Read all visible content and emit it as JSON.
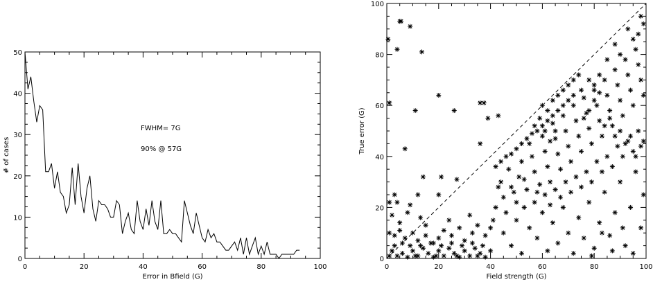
{
  "chart_data": [
    {
      "type": "line",
      "xlabel": "Error in Bfield (G)",
      "ylabel": "# of cases",
      "xlim": [
        0,
        100
      ],
      "ylim": [
        0,
        50
      ],
      "xticks": [
        "0",
        "20",
        "40",
        "60",
        "80",
        "100"
      ],
      "yticks": [
        "0",
        "10",
        "20",
        "30",
        "40",
        "50"
      ],
      "grid": false,
      "annotations": [
        "FWHM= 7G",
        "90% @ 57G"
      ],
      "x": [
        0,
        1,
        2,
        3,
        4,
        5,
        6,
        7,
        8,
        9,
        10,
        11,
        12,
        13,
        14,
        15,
        16,
        17,
        18,
        19,
        20,
        21,
        22,
        23,
        24,
        25,
        26,
        27,
        28,
        29,
        30,
        31,
        32,
        33,
        34,
        35,
        36,
        37,
        38,
        39,
        40,
        41,
        42,
        43,
        44,
        45,
        46,
        47,
        48,
        49,
        50,
        51,
        52,
        53,
        54,
        55,
        56,
        57,
        58,
        59,
        60,
        61,
        62,
        63,
        64,
        65,
        66,
        67,
        68,
        69,
        70,
        71,
        72,
        73,
        74,
        75,
        76,
        77,
        78,
        79,
        80,
        81,
        82,
        83,
        84,
        85,
        86,
        87,
        88,
        89,
        90,
        91,
        92,
        93
      ],
      "values": [
        50,
        41,
        44,
        38,
        33,
        37,
        36,
        21,
        21,
        23,
        17,
        21,
        16,
        15,
        11,
        13,
        22,
        13,
        23,
        15,
        11,
        17,
        20,
        12,
        9,
        14,
        13,
        13,
        12,
        10,
        10,
        14,
        13,
        6,
        9,
        11,
        7,
        6,
        14,
        9,
        7,
        12,
        8,
        14,
        9,
        7,
        14,
        6,
        6,
        7,
        6,
        6,
        5,
        4,
        14,
        11,
        8,
        6,
        11,
        8,
        5,
        4,
        7,
        5,
        6,
        4,
        4,
        3,
        2,
        2,
        3,
        4,
        2,
        5,
        1,
        5,
        1,
        3,
        5,
        1,
        3,
        1,
        4,
        1,
        1,
        1,
        0,
        1,
        1,
        1,
        1,
        1,
        2,
        2
      ]
    },
    {
      "type": "scatter",
      "xlabel": "Field strength (G)",
      "ylabel": "True error (G)",
      "xlim": [
        0,
        100
      ],
      "ylim": [
        0,
        100
      ],
      "xticks": [
        "0",
        "20",
        "40",
        "60",
        "80",
        "100"
      ],
      "yticks": [
        "0",
        "20",
        "40",
        "60",
        "80",
        "100"
      ],
      "grid": false,
      "reference_line": "y = x (dashed)",
      "marker": "asterisk",
      "points": [
        [
          0.5,
          86
        ],
        [
          5,
          93
        ],
        [
          5.5,
          93
        ],
        [
          4,
          82
        ],
        [
          9,
          91
        ],
        [
          13.5,
          81
        ],
        [
          1,
          61
        ],
        [
          7,
          43
        ],
        [
          11,
          58
        ],
        [
          20,
          64
        ],
        [
          26,
          58
        ],
        [
          36,
          61
        ],
        [
          37.5,
          61
        ],
        [
          39,
          55
        ],
        [
          43,
          56
        ],
        [
          36,
          45
        ],
        [
          27,
          31
        ],
        [
          21,
          32
        ],
        [
          14,
          32
        ],
        [
          20,
          25
        ],
        [
          12,
          25
        ],
        [
          3,
          25
        ],
        [
          1,
          22
        ],
        [
          4,
          22
        ],
        [
          9,
          21
        ],
        [
          2,
          17
        ],
        [
          8,
          18
        ],
        [
          13,
          16
        ],
        [
          1,
          10
        ],
        [
          3,
          9
        ],
        [
          5,
          11
        ],
        [
          7,
          8
        ],
        [
          10,
          10
        ],
        [
          12,
          7
        ],
        [
          15,
          9
        ],
        [
          18,
          6
        ],
        [
          20,
          8
        ],
        [
          22,
          11
        ],
        [
          25,
          9
        ],
        [
          28,
          12
        ],
        [
          30,
          7
        ],
        [
          33,
          10
        ],
        [
          35,
          13
        ],
        [
          38,
          9
        ],
        [
          40,
          12
        ],
        [
          2,
          3
        ],
        [
          4,
          1
        ],
        [
          6,
          2
        ],
        [
          8,
          0.5
        ],
        [
          10,
          3
        ],
        [
          12,
          1
        ],
        [
          14,
          4
        ],
        [
          16,
          2
        ],
        [
          18,
          0.5
        ],
        [
          20,
          3
        ],
        [
          22,
          1
        ],
        [
          24,
          4
        ],
        [
          26,
          2
        ],
        [
          28,
          0.5
        ],
        [
          30,
          3
        ],
        [
          32,
          1
        ],
        [
          34,
          4
        ],
        [
          36,
          2
        ],
        [
          38,
          0.5
        ],
        [
          40,
          3
        ],
        [
          3,
          5
        ],
        [
          6,
          6
        ],
        [
          9,
          5
        ],
        [
          13,
          5
        ],
        [
          17,
          6
        ],
        [
          21,
          5
        ],
        [
          25,
          6
        ],
        [
          29,
          5
        ],
        [
          33,
          6
        ],
        [
          37,
          5
        ],
        [
          1,
          1
        ],
        [
          11,
          1
        ],
        [
          19,
          1
        ],
        [
          27,
          1
        ],
        [
          35,
          1
        ],
        [
          5,
          14
        ],
        [
          15,
          13
        ],
        [
          24,
          15
        ],
        [
          32,
          17
        ],
        [
          41,
          15
        ],
        [
          42,
          20
        ],
        [
          45,
          24
        ],
        [
          44,
          30
        ],
        [
          47,
          35
        ],
        [
          48,
          28
        ],
        [
          50,
          22
        ],
        [
          52,
          38
        ],
        [
          53,
          31
        ],
        [
          55,
          45
        ],
        [
          56,
          40
        ],
        [
          57,
          34
        ],
        [
          58,
          26
        ],
        [
          60,
          48
        ],
        [
          61,
          42
        ],
        [
          62,
          36
        ],
        [
          63,
          30
        ],
        [
          64,
          53
        ],
        [
          65,
          47
        ],
        [
          66,
          41
        ],
        [
          67,
          35
        ],
        [
          68,
          56
        ],
        [
          69,
          50
        ],
        [
          70,
          44
        ],
        [
          71,
          38
        ],
        [
          72,
          60
        ],
        [
          73,
          54
        ],
        [
          74,
          48
        ],
        [
          75,
          42
        ],
        [
          76,
          63
        ],
        [
          77,
          57
        ],
        [
          78,
          51
        ],
        [
          79,
          45
        ],
        [
          80,
          66
        ],
        [
          81,
          60
        ],
        [
          82,
          54
        ],
        [
          83,
          48
        ],
        [
          84,
          70
        ],
        [
          85,
          64
        ],
        [
          86,
          58
        ],
        [
          87,
          52
        ],
        [
          88,
          74
        ],
        [
          89,
          68
        ],
        [
          90,
          62
        ],
        [
          91,
          56
        ],
        [
          92,
          78
        ],
        [
          93,
          72
        ],
        [
          94,
          66
        ],
        [
          95,
          60
        ],
        [
          96,
          82
        ],
        [
          97,
          76
        ],
        [
          98,
          70
        ],
        [
          99,
          64
        ],
        [
          88,
          84
        ],
        [
          90,
          80
        ],
        [
          93,
          90
        ],
        [
          95,
          86
        ],
        [
          97,
          88
        ],
        [
          99,
          92
        ],
        [
          98,
          95
        ],
        [
          85,
          78
        ],
        [
          82,
          72
        ],
        [
          80,
          68
        ],
        [
          78,
          70
        ],
        [
          75,
          66
        ],
        [
          72,
          64
        ],
        [
          70,
          62
        ],
        [
          68,
          60
        ],
        [
          66,
          58
        ],
        [
          64,
          56
        ],
        [
          62,
          54
        ],
        [
          60,
          52
        ],
        [
          58,
          50
        ],
        [
          56,
          49
        ],
        [
          54,
          47
        ],
        [
          52,
          45
        ],
        [
          50,
          43
        ],
        [
          48,
          41
        ],
        [
          46,
          40
        ],
        [
          44,
          38
        ],
        [
          42,
          36
        ],
        [
          45,
          10
        ],
        [
          48,
          5
        ],
        [
          50,
          15
        ],
        [
          52,
          2
        ],
        [
          55,
          12
        ],
        [
          58,
          8
        ],
        [
          60,
          18
        ],
        [
          62,
          3
        ],
        [
          64,
          14
        ],
        [
          66,
          6
        ],
        [
          68,
          20
        ],
        [
          70,
          10
        ],
        [
          72,
          2
        ],
        [
          74,
          16
        ],
        [
          76,
          8
        ],
        [
          78,
          22
        ],
        [
          80,
          4
        ],
        [
          82,
          14
        ],
        [
          84,
          26
        ],
        [
          86,
          9
        ],
        [
          88,
          18
        ],
        [
          90,
          30
        ],
        [
          92,
          5
        ],
        [
          94,
          20
        ],
        [
          96,
          34
        ],
        [
          98,
          12
        ],
        [
          99,
          25
        ],
        [
          95,
          2
        ],
        [
          91,
          12
        ],
        [
          87,
          3
        ],
        [
          83,
          10
        ],
        [
          79,
          1
        ],
        [
          43,
          28
        ],
        [
          46,
          18
        ],
        [
          49,
          26
        ],
        [
          51,
          32
        ],
        [
          53,
          20
        ],
        [
          54,
          27
        ],
        [
          57,
          22
        ],
        [
          59,
          29
        ],
        [
          61,
          25
        ],
        [
          63,
          21
        ],
        [
          65,
          27
        ],
        [
          67,
          24
        ],
        [
          69,
          30
        ],
        [
          71,
          26
        ],
        [
          73,
          32
        ],
        [
          75,
          28
        ],
        [
          77,
          34
        ],
        [
          79,
          30
        ],
        [
          81,
          38
        ],
        [
          83,
          34
        ],
        [
          85,
          40
        ],
        [
          87,
          36
        ],
        [
          89,
          44
        ],
        [
          91,
          40
        ],
        [
          93,
          46
        ],
        [
          95,
          42
        ],
        [
          97,
          50
        ],
        [
          99,
          46
        ],
        [
          60,
          60
        ],
        [
          62,
          58
        ],
        [
          64,
          62
        ],
        [
          66,
          64
        ],
        [
          68,
          66
        ],
        [
          70,
          68
        ],
        [
          72,
          70
        ],
        [
          74,
          72
        ],
        [
          76,
          55
        ],
        [
          78,
          58
        ],
        [
          80,
          62
        ],
        [
          82,
          65
        ],
        [
          84,
          52
        ],
        [
          86,
          55
        ],
        [
          88,
          48
        ],
        [
          90,
          50
        ],
        [
          92,
          45
        ],
        [
          94,
          48
        ],
        [
          96,
          40
        ],
        [
          98,
          44
        ],
        [
          57,
          52
        ],
        [
          59,
          55
        ],
        [
          61,
          50
        ],
        [
          63,
          46
        ],
        [
          65,
          50
        ]
      ]
    }
  ]
}
